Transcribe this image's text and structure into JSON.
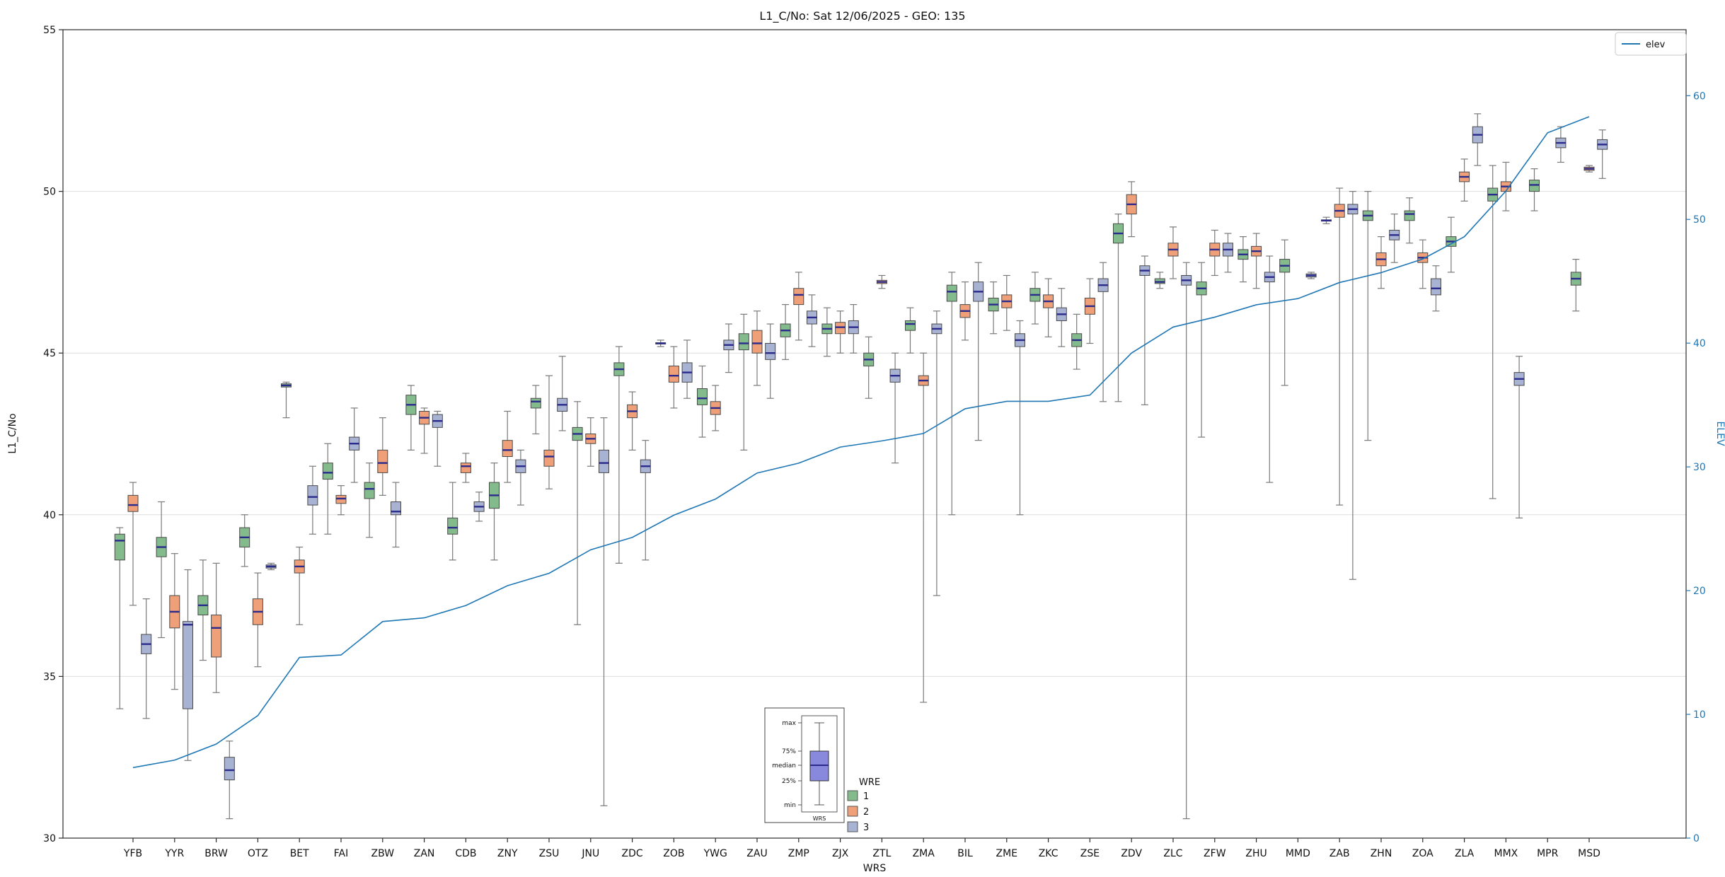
{
  "title": "L1_C/No: Sat 12/06/2025 - GEO: 135",
  "xlabel": "WRS",
  "ylabel_left": "L1_C/No",
  "ylabel_right": "ELEV",
  "elev_legend_label": "elev",
  "legend": {
    "title": "WRE",
    "entries": [
      {
        "label": "1",
        "color": "#84bb8c"
      },
      {
        "label": "2",
        "color": "#f0a078"
      },
      {
        "label": "3",
        "color": "#a8b2d3"
      }
    ]
  },
  "inset": {
    "labels": [
      "max",
      "75%",
      "median",
      "25%",
      "min"
    ],
    "xlabel": "WRS",
    "box_color": "#8888dd"
  },
  "chart_data": {
    "type": "box",
    "title": "L1_C/No: Sat 12/06/2025 - GEO: 135",
    "xlabel": "WRS",
    "ylabel": "L1_C/No",
    "ylabel_right": "ELEV",
    "y_left": {
      "min": 30,
      "max": 55,
      "ticks": [
        30,
        35,
        40,
        45,
        50,
        55
      ]
    },
    "y_right": {
      "min": 0,
      "max": 60,
      "ticks": [
        0,
        10,
        20,
        30,
        40,
        50,
        60
      ]
    },
    "grid": true,
    "categories": [
      "YFB",
      "YYR",
      "BRW",
      "OTZ",
      "BET",
      "FAI",
      "ZBW",
      "ZAN",
      "CDB",
      "ZNY",
      "ZSU",
      "JNU",
      "ZDC",
      "ZOB",
      "YWG",
      "ZAU",
      "ZMP",
      "ZJX",
      "ZTL",
      "ZMA",
      "BIL",
      "ZME",
      "ZKC",
      "ZSE",
      "ZDV",
      "ZLC",
      "ZFW",
      "ZHU",
      "MMD",
      "ZAB",
      "ZHN",
      "ZOA",
      "ZLA",
      "MMX",
      "MPR",
      "MSD"
    ],
    "box_format": [
      "whisker_low",
      "q1",
      "median",
      "q3",
      "whisker_high"
    ],
    "series": [
      {
        "name": "1",
        "color": "#84bb8c",
        "boxes": [
          [
            34.0,
            38.6,
            39.2,
            39.4,
            39.6
          ],
          [
            36.2,
            38.7,
            39.0,
            39.3,
            40.4
          ],
          [
            35.5,
            36.9,
            37.2,
            37.5,
            38.6
          ],
          [
            38.4,
            39.0,
            39.3,
            39.6,
            40.0
          ],
          [
            43.0,
            43.95,
            44.0,
            44.05,
            44.1
          ],
          [
            39.4,
            41.1,
            41.3,
            41.6,
            42.2
          ],
          [
            39.3,
            40.5,
            40.8,
            41.0,
            41.6
          ],
          [
            42.0,
            43.1,
            43.4,
            43.7,
            44.0
          ],
          [
            38.6,
            39.4,
            39.6,
            39.9,
            41.0
          ],
          [
            38.6,
            40.2,
            40.6,
            41.0,
            41.6
          ],
          [
            42.5,
            43.3,
            43.5,
            43.6,
            44.0
          ],
          [
            36.6,
            42.3,
            42.5,
            42.7,
            43.5
          ],
          [
            38.5,
            44.3,
            44.5,
            44.7,
            45.2
          ],
          [
            45.2,
            45.28,
            45.3,
            45.32,
            45.4
          ],
          [
            42.4,
            43.4,
            43.6,
            43.9,
            44.6
          ],
          [
            42.0,
            45.1,
            45.3,
            45.6,
            46.2
          ],
          [
            44.8,
            45.5,
            45.7,
            45.9,
            46.5
          ],
          [
            44.9,
            45.6,
            45.75,
            45.9,
            46.4
          ],
          [
            43.6,
            44.6,
            44.8,
            45.0,
            45.5
          ],
          [
            45.0,
            45.7,
            45.9,
            46.0,
            46.4
          ],
          [
            40.0,
            46.6,
            46.9,
            47.1,
            47.5
          ],
          [
            45.6,
            46.3,
            46.5,
            46.7,
            47.2
          ],
          [
            45.9,
            46.6,
            46.8,
            47.0,
            47.5
          ],
          [
            44.5,
            45.2,
            45.4,
            45.6,
            46.2
          ],
          [
            43.5,
            48.4,
            48.7,
            49.0,
            49.3
          ],
          [
            47.0,
            47.15,
            47.2,
            47.3,
            47.5
          ],
          [
            42.4,
            46.8,
            47.0,
            47.2,
            47.8
          ],
          [
            47.2,
            47.9,
            48.05,
            48.2,
            48.6
          ],
          [
            44.0,
            47.5,
            47.7,
            47.9,
            48.5
          ],
          [
            49.0,
            49.08,
            49.1,
            49.12,
            49.2
          ],
          [
            42.3,
            49.1,
            49.25,
            49.4,
            50.0
          ],
          [
            48.4,
            49.1,
            49.3,
            49.4,
            49.8
          ],
          [
            47.5,
            48.3,
            48.45,
            48.6,
            49.2
          ],
          [
            40.5,
            49.7,
            49.9,
            50.1,
            50.8
          ],
          [
            49.4,
            50.0,
            50.2,
            50.35,
            50.7
          ],
          [
            46.3,
            47.1,
            47.3,
            47.5,
            47.9
          ]
        ]
      },
      {
        "name": "2",
        "color": "#f0a078",
        "boxes": [
          [
            37.2,
            40.1,
            40.3,
            40.6,
            41.0
          ],
          [
            34.6,
            36.5,
            37.0,
            37.5,
            38.8
          ],
          [
            34.5,
            35.6,
            36.5,
            36.9,
            38.5
          ],
          [
            35.3,
            36.6,
            37.0,
            37.4,
            38.2
          ],
          [
            36.6,
            38.2,
            38.4,
            38.6,
            39.0
          ],
          [
            40.0,
            40.35,
            40.5,
            40.6,
            40.9
          ],
          [
            40.6,
            41.3,
            41.6,
            42.0,
            43.0
          ],
          [
            41.9,
            42.8,
            43.0,
            43.2,
            43.3
          ],
          [
            41.0,
            41.3,
            41.5,
            41.6,
            41.9
          ],
          [
            41.0,
            41.8,
            42.0,
            42.3,
            43.2
          ],
          [
            40.8,
            41.5,
            41.8,
            42.0,
            44.3
          ],
          [
            41.5,
            42.2,
            42.35,
            42.5,
            43.0
          ],
          [
            42.0,
            43.0,
            43.2,
            43.4,
            43.8
          ],
          [
            43.3,
            44.1,
            44.3,
            44.6,
            45.2
          ],
          [
            42.6,
            43.1,
            43.3,
            43.5,
            44.0
          ],
          [
            44.0,
            45.0,
            45.3,
            45.7,
            46.3
          ],
          [
            45.4,
            46.5,
            46.8,
            47.0,
            47.5
          ],
          [
            45.0,
            45.6,
            45.8,
            45.95,
            46.3
          ],
          [
            47.0,
            47.15,
            47.2,
            47.25,
            47.4
          ],
          [
            34.2,
            44.0,
            44.15,
            44.3,
            45.0
          ],
          [
            45.4,
            46.1,
            46.3,
            46.5,
            47.2
          ],
          [
            45.7,
            46.4,
            46.6,
            46.8,
            47.4
          ],
          [
            45.5,
            46.4,
            46.6,
            46.8,
            47.3
          ],
          [
            45.3,
            46.2,
            46.45,
            46.7,
            47.3
          ],
          [
            48.6,
            49.3,
            49.6,
            49.9,
            50.3
          ],
          [
            47.3,
            48.0,
            48.2,
            48.4,
            48.9
          ],
          [
            47.4,
            48.0,
            48.2,
            48.4,
            48.8
          ],
          [
            47.0,
            48.0,
            48.15,
            48.3,
            48.7
          ],
          null,
          [
            40.3,
            49.2,
            49.4,
            49.6,
            50.1
          ],
          [
            47.0,
            47.7,
            47.9,
            48.1,
            48.6
          ],
          [
            47.0,
            47.8,
            47.95,
            48.1,
            48.5
          ],
          [
            49.7,
            50.3,
            50.45,
            50.6,
            51.0
          ],
          [
            49.4,
            50.0,
            50.15,
            50.3,
            50.9
          ],
          null,
          [
            50.6,
            50.65,
            50.7,
            50.75,
            50.8
          ]
        ]
      },
      {
        "name": "3",
        "color": "#a8b2d3",
        "boxes": [
          [
            33.7,
            35.7,
            36.0,
            36.3,
            37.4
          ],
          [
            32.4,
            34.0,
            36.6,
            36.7,
            38.3
          ],
          [
            30.6,
            31.8,
            32.1,
            32.5,
            33.0
          ],
          [
            38.3,
            38.35,
            38.4,
            38.45,
            38.5
          ],
          [
            39.4,
            40.3,
            40.55,
            40.9,
            41.5
          ],
          [
            41.0,
            42.0,
            42.2,
            42.4,
            43.3
          ],
          [
            39.0,
            40.0,
            40.1,
            40.4,
            41.0
          ],
          [
            41.5,
            42.7,
            42.9,
            43.1,
            43.2
          ],
          [
            39.8,
            40.1,
            40.25,
            40.4,
            40.7
          ],
          [
            40.3,
            41.3,
            41.5,
            41.7,
            42.0
          ],
          [
            42.6,
            43.2,
            43.4,
            43.6,
            44.9
          ],
          [
            31.0,
            41.3,
            41.6,
            42.0,
            43.0
          ],
          [
            38.6,
            41.3,
            41.5,
            41.7,
            42.3
          ],
          [
            43.6,
            44.1,
            44.4,
            44.7,
            45.4
          ],
          [
            44.4,
            45.1,
            45.25,
            45.4,
            45.9
          ],
          [
            43.6,
            44.8,
            45.0,
            45.3,
            45.9
          ],
          [
            45.2,
            45.9,
            46.1,
            46.3,
            46.8
          ],
          [
            45.0,
            45.6,
            45.8,
            46.0,
            46.5
          ],
          [
            41.6,
            44.1,
            44.3,
            44.5,
            45.0
          ],
          [
            37.5,
            45.6,
            45.75,
            45.9,
            46.3
          ],
          [
            42.3,
            46.6,
            46.9,
            47.2,
            47.8
          ],
          [
            40.0,
            45.2,
            45.4,
            45.6,
            46.0
          ],
          [
            45.2,
            46.0,
            46.2,
            46.4,
            47.0
          ],
          [
            43.5,
            46.9,
            47.1,
            47.3,
            47.8
          ],
          [
            43.4,
            47.4,
            47.55,
            47.7,
            48.0
          ],
          [
            30.6,
            47.1,
            47.25,
            47.4,
            47.8
          ],
          [
            47.5,
            48.0,
            48.2,
            48.4,
            48.7
          ],
          [
            41.0,
            47.2,
            47.35,
            47.5,
            48.0
          ],
          [
            47.3,
            47.35,
            47.4,
            47.45,
            47.5
          ],
          [
            38.0,
            49.3,
            49.45,
            49.6,
            50.0
          ],
          [
            47.8,
            48.5,
            48.65,
            48.8,
            49.3
          ],
          [
            46.3,
            46.8,
            47.0,
            47.3,
            47.7
          ],
          [
            50.8,
            51.5,
            51.75,
            52.0,
            52.4
          ],
          [
            39.9,
            44.0,
            44.2,
            44.4,
            44.9
          ],
          [
            50.9,
            51.35,
            51.5,
            51.65,
            52.0
          ],
          [
            50.4,
            51.3,
            51.45,
            51.6,
            51.9
          ]
        ]
      }
    ],
    "elev_line": {
      "name": "elev",
      "color": "#1f77b4",
      "axis": "right",
      "values": [
        5.7,
        6.3,
        7.6,
        9.9,
        14.6,
        14.8,
        17.5,
        17.8,
        18.8,
        20.4,
        21.4,
        23.3,
        24.3,
        26.1,
        27.4,
        29.5,
        30.3,
        31.6,
        32.1,
        32.7,
        34.7,
        35.3,
        35.3,
        35.8,
        39.2,
        41.3,
        42.1,
        43.1,
        43.6,
        44.9,
        45.7,
        46.8,
        48.6,
        52.3,
        57.0,
        58.3
      ]
    },
    "style": {
      "median_color": "#2b2b8c",
      "box_edge_color": "#4a4a4a",
      "whisker_color": "#7a7a7a",
      "grid_color": "#dedede"
    }
  }
}
